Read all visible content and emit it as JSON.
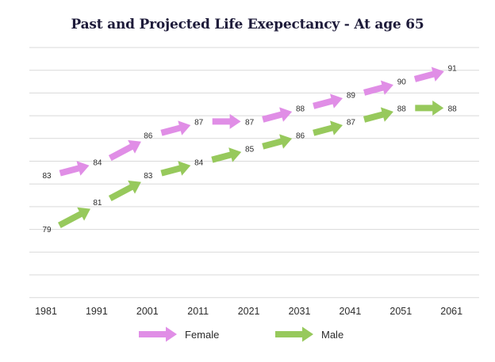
{
  "chart_data": {
    "type": "line",
    "title": "Past and Projected Life Exepectancy - At age 65",
    "categories": [
      "1981",
      "1991",
      "2001",
      "2011",
      "2021",
      "2031",
      "2041",
      "2051",
      "2061"
    ],
    "series": [
      {
        "name": "Female",
        "color": "#e08ee6",
        "values": [
          83,
          84,
          86,
          87,
          87,
          88,
          89,
          90,
          91
        ]
      },
      {
        "name": "Male",
        "color": "#97c95c",
        "values": [
          79,
          81,
          83,
          84,
          85,
          86,
          87,
          88,
          88
        ]
      }
    ],
    "xlabel": "",
    "ylabel": "",
    "ylim": [
      74,
      92.5
    ],
    "grid": true,
    "legend": "bottom"
  }
}
